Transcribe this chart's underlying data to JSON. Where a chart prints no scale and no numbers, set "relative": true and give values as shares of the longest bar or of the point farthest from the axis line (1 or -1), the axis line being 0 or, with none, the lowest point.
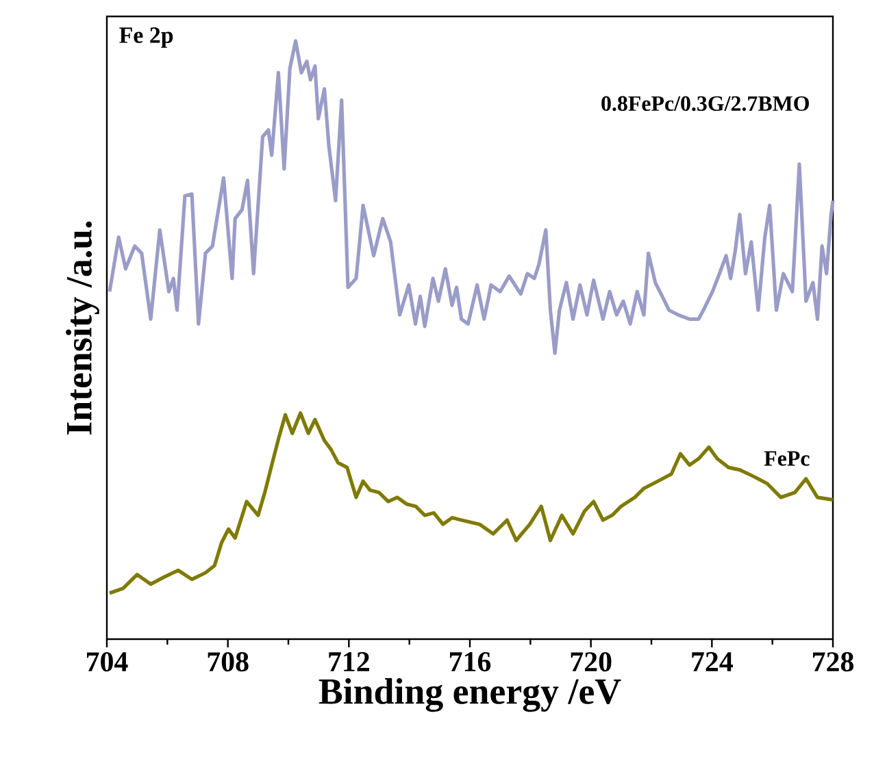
{
  "chart_data": {
    "type": "line",
    "xlabel": "Binding energy /eV",
    "ylabel": "Intensity /a.u.",
    "relative": true,
    "xlim": [
      704,
      728
    ],
    "xticks": [
      704,
      708,
      712,
      716,
      720,
      724,
      728
    ],
    "annotations": [
      "Fe 2p"
    ],
    "legend": false,
    "grid": false,
    "marker": "none",
    "line_style": "solid",
    "series": [
      {
        "name": "0.8FePc/0.3G/2.7BMO",
        "color": "#9a9cc8",
        "x": [
          704.09,
          704.39,
          704.62,
          704.92,
          705.15,
          705.45,
          705.75,
          706.05,
          706.2,
          706.32,
          706.58,
          706.81,
          707.03,
          707.26,
          707.49,
          707.86,
          708.14,
          708.24,
          708.47,
          708.65,
          708.85,
          709.15,
          709.34,
          709.45,
          709.67,
          709.86,
          710.05,
          710.24,
          710.43,
          710.61,
          710.73,
          710.88,
          710.99,
          711.19,
          711.34,
          711.56,
          711.76,
          711.97,
          712.24,
          712.47,
          712.82,
          713.12,
          713.38,
          713.68,
          713.98,
          714.2,
          714.36,
          714.51,
          714.78,
          714.96,
          715.19,
          715.41,
          715.56,
          715.72,
          715.94,
          716.24,
          716.47,
          716.7,
          717.0,
          717.3,
          717.68,
          717.9,
          718.13,
          718.28,
          718.51,
          718.66,
          718.81,
          718.96,
          719.19,
          719.41,
          719.64,
          719.87,
          720.09,
          720.4,
          720.62,
          720.85,
          721.07,
          721.3,
          721.53,
          721.75,
          721.9,
          722.13,
          722.36,
          722.58,
          722.89,
          723.26,
          723.56,
          723.72,
          724.02,
          724.25,
          724.47,
          724.62,
          724.77,
          724.92,
          725.11,
          725.3,
          725.53,
          725.75,
          725.91,
          726.13,
          726.36,
          726.66,
          726.89,
          727.11,
          727.34,
          727.49,
          727.64,
          727.79,
          727.94,
          728.0
        ],
        "values": [
          0.581,
          0.672,
          0.619,
          0.657,
          0.645,
          0.535,
          0.684,
          0.581,
          0.603,
          0.55,
          0.741,
          0.744,
          0.527,
          0.645,
          0.657,
          0.771,
          0.603,
          0.703,
          0.718,
          0.767,
          0.611,
          0.84,
          0.851,
          0.809,
          0.947,
          0.786,
          0.954,
          1.0,
          0.947,
          0.966,
          0.935,
          0.958,
          0.87,
          0.92,
          0.824,
          0.733,
          0.901,
          0.588,
          0.603,
          0.725,
          0.641,
          0.703,
          0.664,
          0.542,
          0.592,
          0.527,
          0.573,
          0.523,
          0.603,
          0.565,
          0.619,
          0.558,
          0.588,
          0.535,
          0.527,
          0.592,
          0.535,
          0.592,
          0.581,
          0.607,
          0.577,
          0.611,
          0.603,
          0.626,
          0.684,
          0.55,
          0.478,
          0.55,
          0.596,
          0.535,
          0.592,
          0.542,
          0.6,
          0.535,
          0.581,
          0.542,
          0.565,
          0.527,
          0.581,
          0.542,
          0.645,
          0.596,
          0.573,
          0.55,
          0.542,
          0.535,
          0.535,
          0.55,
          0.581,
          0.611,
          0.641,
          0.603,
          0.649,
          0.71,
          0.611,
          0.664,
          0.55,
          0.672,
          0.725,
          0.55,
          0.611,
          0.581,
          0.794,
          0.565,
          0.596,
          0.535,
          0.657,
          0.611,
          0.71,
          0.733
        ]
      },
      {
        "name": "FePc",
        "color": "#7f7a00",
        "x": [
          704.09,
          704.54,
          705.0,
          705.45,
          705.9,
          706.36,
          706.81,
          707.26,
          707.56,
          707.79,
          708.02,
          708.24,
          708.62,
          709.0,
          709.22,
          709.45,
          709.68,
          709.9,
          710.13,
          710.4,
          710.66,
          710.88,
          711.19,
          711.41,
          711.64,
          711.94,
          712.24,
          712.47,
          712.7,
          713.0,
          713.3,
          713.6,
          713.9,
          714.21,
          714.51,
          714.81,
          715.11,
          715.41,
          715.72,
          716.32,
          716.77,
          717.23,
          717.53,
          717.98,
          718.36,
          718.66,
          719.04,
          719.41,
          719.79,
          720.09,
          720.4,
          720.7,
          721.0,
          721.45,
          721.75,
          722.06,
          722.36,
          722.66,
          722.96,
          723.26,
          723.57,
          723.9,
          724.17,
          724.55,
          724.92,
          725.38,
          725.83,
          726.28,
          726.74,
          727.11,
          727.49,
          728.0
        ],
        "values": [
          0.077,
          0.085,
          0.108,
          0.092,
          0.104,
          0.115,
          0.1,
          0.111,
          0.123,
          0.161,
          0.184,
          0.169,
          0.23,
          0.207,
          0.245,
          0.291,
          0.336,
          0.375,
          0.344,
          0.378,
          0.344,
          0.367,
          0.332,
          0.317,
          0.295,
          0.287,
          0.237,
          0.264,
          0.249,
          0.245,
          0.23,
          0.237,
          0.226,
          0.222,
          0.207,
          0.211,
          0.192,
          0.203,
          0.199,
          0.192,
          0.176,
          0.199,
          0.165,
          0.192,
          0.222,
          0.165,
          0.207,
          0.176,
          0.214,
          0.23,
          0.199,
          0.207,
          0.222,
          0.237,
          0.252,
          0.26,
          0.268,
          0.276,
          0.31,
          0.291,
          0.302,
          0.321,
          0.302,
          0.287,
          0.283,
          0.272,
          0.26,
          0.237,
          0.245,
          0.268,
          0.237,
          0.233
        ]
      }
    ]
  }
}
